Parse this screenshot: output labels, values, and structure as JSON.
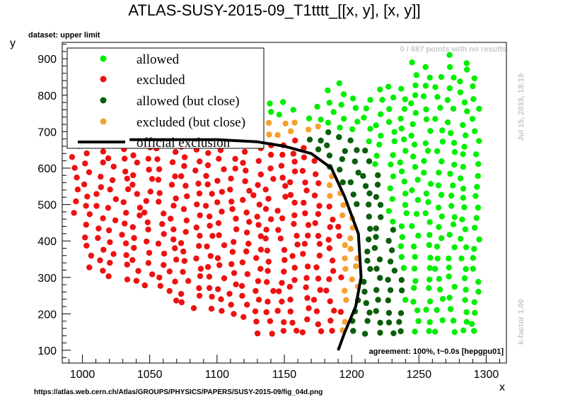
{
  "header": {
    "title": "ATLAS-SUSY-2015-09_T1tttt_[[x, y], [x, y]]",
    "dataset_label": "dataset: upper limit",
    "points_note": "0 / 687 points with no results",
    "timestamp": "Jul 15, 2019, 18:19",
    "kfactor": "k-factor 1.00",
    "agreement": "agreement: 100%, t~0.0s [hepgpu01]",
    "source_url": "https://atlas.web.cern.ch/Atlas/GROUPS/PHYSICS/PAPERS/SUSY-2015-09/fig_04d.png"
  },
  "colors": {
    "allowed": "#00ee00",
    "excluded": "#ee1111",
    "allowed_close": "#0b5e0b",
    "excluded_close": "#f5a030",
    "official": "#000000"
  },
  "chart_data": {
    "type": "scatter",
    "xlabel": "x",
    "ylabel": "y",
    "xlim": [
      985,
      1315
    ],
    "ylim": [
      65,
      945
    ],
    "x_ticks": [
      1000,
      1050,
      1100,
      1150,
      1200,
      1250,
      1300
    ],
    "y_ticks": [
      100,
      200,
      300,
      400,
      500,
      600,
      700,
      800,
      900
    ],
    "legend_position": "top-left",
    "legend": [
      {
        "key": "allowed",
        "label": "allowed",
        "kind": "marker"
      },
      {
        "key": "excluded",
        "label": "excluded",
        "kind": "marker"
      },
      {
        "key": "allowed_close",
        "label": "allowed (but close)",
        "kind": "marker"
      },
      {
        "key": "excluded_close",
        "label": "excluded (but close)",
        "kind": "marker"
      },
      {
        "key": "official",
        "label": "official exclusion",
        "kind": "line"
      }
    ],
    "grid_x_step": 10,
    "grid_y_step": 22,
    "official_exclusion": [
      [
        1035,
        678
      ],
      [
        1100,
        678
      ],
      [
        1130,
        672
      ],
      [
        1150,
        660
      ],
      [
        1170,
        640
      ],
      [
        1185,
        600
      ],
      [
        1195,
        520
      ],
      [
        1205,
        420
      ],
      [
        1207,
        300
      ],
      [
        1203,
        220
      ],
      [
        1195,
        150
      ],
      [
        1190,
        100
      ]
    ],
    "excluded_close_bounds": [
      [
        1175,
        690
      ],
      [
        1185,
        600
      ],
      [
        1192,
        510
      ],
      [
        1200,
        420
      ],
      [
        1202,
        300
      ],
      [
        1200,
        200
      ],
      [
        1195,
        120
      ]
    ],
    "allowed_close_bounds": [
      [
        1205,
        680
      ],
      [
        1212,
        600
      ],
      [
        1220,
        500
      ],
      [
        1228,
        400
      ],
      [
        1232,
        300
      ],
      [
        1235,
        200
      ],
      [
        1238,
        120
      ]
    ]
  }
}
